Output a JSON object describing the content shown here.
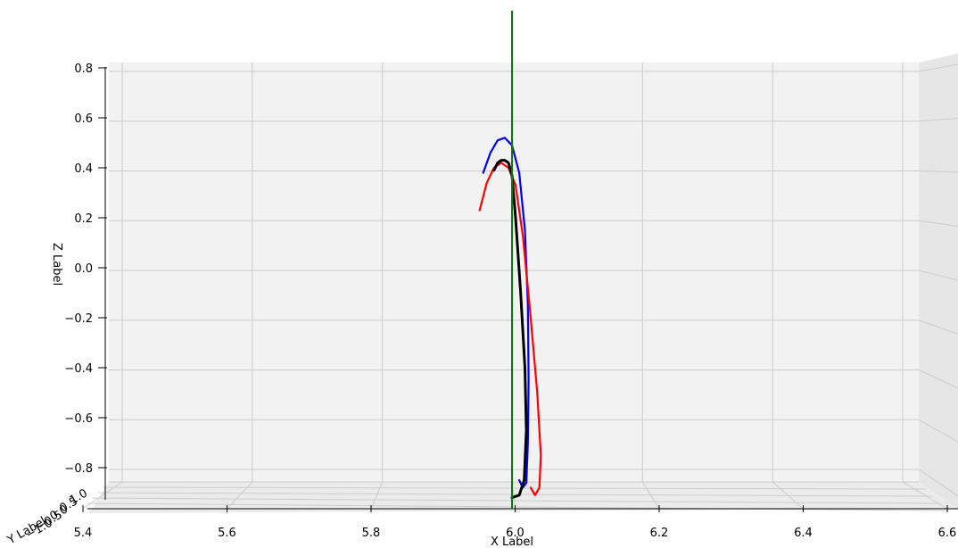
{
  "chart_data": {
    "type": "line",
    "title": "",
    "xlabel": "X Label",
    "ylabel": "Y Label",
    "zlabel": "Z Label",
    "xlim": [
      5.4,
      6.6
    ],
    "zlim": [
      -0.8,
      0.8
    ],
    "x_ticks": [
      "5.4",
      "5.6",
      "5.8",
      "6.0",
      "6.2",
      "6.4",
      "6.6"
    ],
    "z_ticks": [
      "0.8",
      "0.6",
      "0.4",
      "0.2",
      "0.0",
      "−0.2",
      "−0.4",
      "−0.6",
      "−0.8"
    ],
    "y_ticks": [
      "−1.0",
      "−0.5",
      "0.0",
      "0.5",
      "1.0"
    ],
    "grid": true,
    "pane_color": "#f2f2f2",
    "grid_color": "#cccccc",
    "series": [
      {
        "color": "#0000ff",
        "x": [
          5.96,
          5.97,
          5.98,
          5.99,
          6.0,
          6.01,
          6.018,
          6.022,
          6.023,
          6.022,
          6.02,
          6.015,
          6.01
        ],
        "z": [
          0.38,
          0.46,
          0.51,
          0.52,
          0.49,
          0.38,
          0.15,
          -0.15,
          -0.45,
          -0.7,
          -0.86,
          -0.88,
          -0.85
        ]
      },
      {
        "color": "#ff0000",
        "x": [
          5.955,
          5.965,
          5.975,
          5.985,
          5.995,
          6.005,
          6.015,
          6.025,
          6.035,
          6.04,
          6.038,
          6.032,
          6.026
        ],
        "z": [
          0.23,
          0.34,
          0.4,
          0.42,
          0.4,
          0.33,
          0.13,
          -0.17,
          -0.5,
          -0.75,
          -0.88,
          -0.91,
          -0.88
        ]
      },
      {
        "color": "#000000",
        "x": [
          5.975,
          5.98,
          5.985,
          5.99,
          5.995,
          6.0,
          6.005,
          6.012,
          6.018,
          6.02,
          6.017,
          6.01,
          6.0
        ],
        "z": [
          0.39,
          0.42,
          0.43,
          0.43,
          0.42,
          0.37,
          0.2,
          -0.1,
          -0.4,
          -0.65,
          -0.85,
          -0.91,
          -0.92
        ]
      }
    ],
    "vertical_line": {
      "x": 6.0,
      "color": "#008000"
    }
  }
}
